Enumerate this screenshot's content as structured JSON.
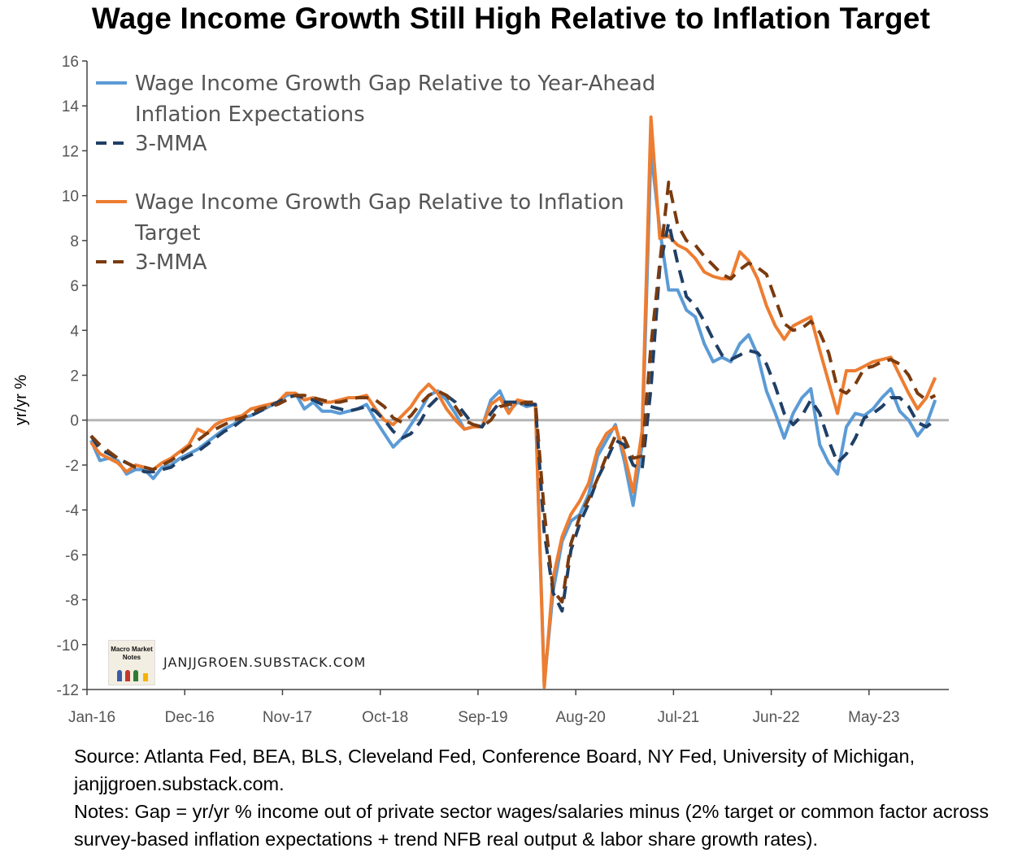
{
  "title": "Wage Income Growth Still High Relative to Inflation Target",
  "footer": {
    "source": "Source: Atlanta Fed, BEA, BLS, Cleveland Fed, Conference Board, NY Fed, University of Michigan, janjjgroen.substack.com.",
    "notes": "Notes: Gap = yr/yr % income out of private sector wages/salaries minus (2% target or common factor across survey-based inflation expectations + trend NFB real output & labor share growth rates)."
  },
  "logo": {
    "text": "Macro Market Notes"
  },
  "watermark": "JANJJGROEN.SUBSTACK.COM",
  "colors": {
    "light_blue": "#5b9bd5",
    "dark_blue": "#1f3f66",
    "orange": "#ed7d31",
    "brown": "#7a3b0f"
  },
  "chart_data": {
    "type": "line",
    "ylabel": "yr/yr %",
    "xlabel": "",
    "ylim": [
      -12,
      16
    ],
    "yticks": [
      -12,
      -10,
      -8,
      -6,
      -4,
      -2,
      0,
      2,
      4,
      6,
      8,
      10,
      12,
      14,
      16
    ],
    "x_start": "Jan-16",
    "xticks": [
      {
        "label": "Jan-16",
        "index": 0
      },
      {
        "label": "Dec-16",
        "index": 11
      },
      {
        "label": "Nov-17",
        "index": 22
      },
      {
        "label": "Oct-18",
        "index": 33
      },
      {
        "label": "Sep-19",
        "index": 44
      },
      {
        "label": "Aug-20",
        "index": 55
      },
      {
        "label": "Jul-21",
        "index": 66
      },
      {
        "label": "Jun-22",
        "index": 77
      },
      {
        "label": "May-23",
        "index": 88
      }
    ],
    "legend_position": "top-left",
    "grid": false,
    "series": [
      {
        "name": "Wage Income Growth Gap Relative to Year-Ahead Inflation Expectations",
        "style": "solid",
        "color": "#5b9bd5",
        "values": [
          -0.9,
          -1.8,
          -1.7,
          -1.8,
          -2.4,
          -2.2,
          -2.2,
          -2.6,
          -2.1,
          -2.0,
          -1.7,
          -1.5,
          -1.3,
          -1.0,
          -0.7,
          -0.4,
          -0.2,
          0.1,
          0.2,
          0.4,
          0.6,
          0.8,
          1.1,
          1.2,
          0.5,
          0.8,
          0.4,
          0.4,
          0.3,
          0.4,
          0.5,
          0.7,
          0.0,
          -0.6,
          -1.2,
          -0.8,
          -0.2,
          0.4,
          1.1,
          1.3,
          0.9,
          0.3,
          -0.4,
          -0.3,
          -0.3,
          0.9,
          1.3,
          0.4,
          0.8,
          0.6,
          0.7,
          -11.7,
          -7.6,
          -5.4,
          -4.5,
          -4.2,
          -3.3,
          -1.6,
          -0.9,
          -0.2,
          -1.8,
          -3.8,
          -1.1,
          12.0,
          8.5,
          5.8,
          5.8,
          4.9,
          4.6,
          3.4,
          2.6,
          2.8,
          2.6,
          3.4,
          3.8,
          2.9,
          1.3,
          0.3,
          -0.8,
          0.3,
          1.0,
          1.4,
          -1.1,
          -1.9,
          -2.4,
          -0.3,
          0.3,
          0.2,
          0.5,
          1.0,
          1.4,
          0.4,
          0.0,
          -0.7,
          -0.2,
          0.9
        ]
      },
      {
        "name": "3-MMA",
        "style": "dashed",
        "color": "#1f3f66",
        "values": [
          -0.7,
          -1.3,
          -1.5,
          -1.7,
          -1.9,
          -2.1,
          -2.3,
          -2.3,
          -2.2,
          -2.1,
          -1.8,
          -1.6,
          -1.4,
          -1.1,
          -0.8,
          -0.5,
          -0.3,
          0.0,
          0.2,
          0.4,
          0.6,
          0.8,
          1.0,
          1.1,
          1.0,
          0.9,
          0.7,
          0.6,
          0.5,
          0.4,
          0.5,
          0.6,
          0.4,
          0.0,
          -0.5,
          -0.8,
          -0.6,
          -0.1,
          0.6,
          1.0,
          1.1,
          0.8,
          0.3,
          -0.2,
          -0.3,
          0.3,
          0.8,
          0.8,
          0.8,
          0.7,
          0.7,
          -5.0,
          -7.7,
          -8.5,
          -5.8,
          -4.6,
          -3.7,
          -2.6,
          -1.8,
          -0.9,
          -1.1,
          -2.0,
          -2.2,
          1.4,
          6.8,
          8.8,
          7.0,
          5.5,
          5.1,
          4.4,
          3.6,
          2.9,
          2.7,
          2.9,
          3.1,
          3.0,
          2.5,
          1.5,
          0.3,
          -0.2,
          0.2,
          0.9,
          0.3,
          -0.9,
          -1.9,
          -1.5,
          -0.8,
          0.1,
          0.3,
          0.6,
          1.0,
          1.0,
          0.6,
          -0.1,
          -0.3,
          0.0
        ]
      },
      {
        "name": "Wage Income Growth Gap Relative to Inflation Target",
        "style": "solid",
        "color": "#ed7d31",
        "values": [
          -1.0,
          -1.5,
          -1.7,
          -1.9,
          -2.3,
          -2.0,
          -2.1,
          -2.2,
          -1.9,
          -1.7,
          -1.4,
          -1.1,
          -0.4,
          -0.6,
          -0.2,
          0.0,
          0.1,
          0.2,
          0.5,
          0.6,
          0.7,
          0.8,
          1.2,
          1.2,
          0.9,
          1.0,
          0.8,
          0.8,
          0.9,
          1.0,
          1.0,
          1.1,
          0.5,
          0.0,
          -0.2,
          0.2,
          0.6,
          1.2,
          1.6,
          1.2,
          0.5,
          0.0,
          -0.4,
          -0.3,
          -0.3,
          0.7,
          1.0,
          0.3,
          0.9,
          0.8,
          0.7,
          -11.9,
          -7.0,
          -5.2,
          -4.2,
          -3.6,
          -2.8,
          -1.3,
          -0.6,
          -0.3,
          -1.5,
          -3.2,
          -0.5,
          13.5,
          8.1,
          8.2,
          7.8,
          7.6,
          7.2,
          6.6,
          6.4,
          6.3,
          6.3,
          7.5,
          7.1,
          6.3,
          5.1,
          4.2,
          3.6,
          4.2,
          4.4,
          4.6,
          3.1,
          1.7,
          0.3,
          2.2,
          2.2,
          2.4,
          2.6,
          2.7,
          2.8,
          2.0,
          1.2,
          0.5,
          1.0,
          1.9
        ]
      },
      {
        "name": "3-MMA",
        "style": "dashed",
        "color": "#7a3b0f",
        "values": [
          -0.7,
          -1.1,
          -1.4,
          -1.7,
          -1.9,
          -2.1,
          -2.1,
          -2.2,
          -2.0,
          -1.8,
          -1.5,
          -1.2,
          -0.9,
          -0.6,
          -0.4,
          -0.2,
          0.0,
          0.1,
          0.3,
          0.5,
          0.6,
          0.7,
          0.9,
          1.1,
          1.1,
          1.0,
          0.9,
          0.8,
          0.8,
          0.9,
          1.0,
          1.0,
          0.9,
          0.6,
          0.1,
          -0.1,
          0.2,
          0.7,
          1.1,
          1.3,
          1.1,
          0.6,
          0.0,
          -0.2,
          -0.3,
          0.0,
          0.6,
          0.7,
          0.7,
          0.8,
          0.8,
          -4.1,
          -7.6,
          -8.1,
          -5.5,
          -4.3,
          -3.5,
          -2.6,
          -1.6,
          -0.7,
          -0.8,
          -1.7,
          -1.6,
          3.3,
          7.0,
          10.6,
          8.7,
          8.0,
          7.8,
          7.3,
          6.9,
          6.5,
          6.3,
          6.7,
          7.0,
          6.8,
          6.5,
          5.4,
          4.3,
          4.0,
          4.1,
          4.4,
          3.9,
          3.0,
          1.4,
          1.2,
          1.6,
          2.3,
          2.4,
          2.6,
          2.7,
          2.5,
          2.0,
          1.2,
          0.9,
          1.1
        ]
      }
    ],
    "legend": [
      "Wage Income Growth Gap Relative to Year-Ahead Inflation Expectations",
      "3-MMA",
      "Wage Income Growth Gap Relative to Inflation Target",
      "3-MMA"
    ]
  }
}
